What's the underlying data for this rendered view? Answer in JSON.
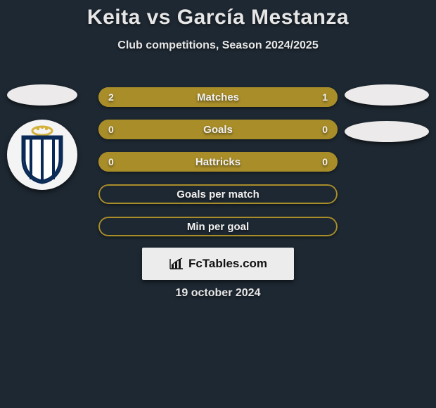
{
  "title": "Keita vs García Mestanza",
  "subtitle": "Club competitions, Season 2024/2025",
  "footer_date": "19 october 2024",
  "brand": "FcTables.com",
  "colors": {
    "background": "#1e2832",
    "accent": "#a88d29",
    "text": "#e6e6e6",
    "panel": "#ececec"
  },
  "bar_style": {
    "height": 28,
    "gap": 18,
    "radius": 14,
    "label_fontsize": 15,
    "value_fontsize": 14
  },
  "bars": [
    {
      "label": "Matches",
      "left": "2",
      "right": "1",
      "left_pct": 66.7,
      "right_pct": 33.3,
      "show_values": true,
      "filled": true
    },
    {
      "label": "Goals",
      "left": "0",
      "right": "0",
      "left_pct": 50.0,
      "right_pct": 50.0,
      "show_values": true,
      "filled": true
    },
    {
      "label": "Hattricks",
      "left": "0",
      "right": "0",
      "left_pct": 50.0,
      "right_pct": 50.0,
      "show_values": true,
      "filled": true
    },
    {
      "label": "Goals per match",
      "left": "",
      "right": "",
      "left_pct": 0,
      "right_pct": 0,
      "show_values": false,
      "filled": false
    },
    {
      "label": "Min per goal",
      "left": "",
      "right": "",
      "left_pct": 0,
      "right_pct": 0,
      "show_values": false,
      "filled": false
    }
  ]
}
